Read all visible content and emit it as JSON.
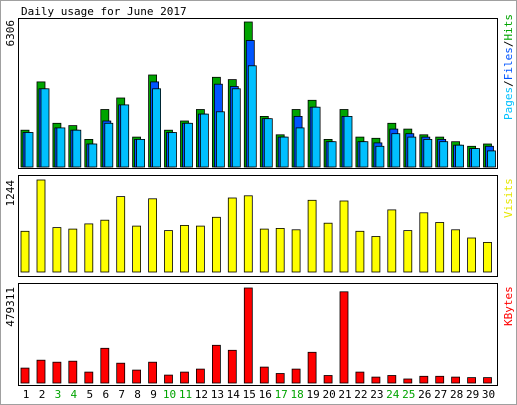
{
  "chart_data": {
    "type": "bar",
    "title": "Daily usage for June 2017",
    "categories": [
      "1",
      "2",
      "3",
      "4",
      "5",
      "6",
      "7",
      "8",
      "9",
      "10",
      "11",
      "12",
      "13",
      "14",
      "15",
      "16",
      "17",
      "18",
      "19",
      "20",
      "21",
      "22",
      "23",
      "24",
      "25",
      "26",
      "27",
      "28",
      "29",
      "30"
    ],
    "weekend_days": [
      "3",
      "4",
      "10",
      "11",
      "17",
      "18",
      "24",
      "25"
    ],
    "colors": {
      "hits": "#00a400",
      "files": "#0055ff",
      "pages": "#00c0ff",
      "visits": "#ffff00",
      "kbytes": "#ff0000",
      "weekend_label": "#00a400",
      "weekday_label": "#000000"
    },
    "panels": [
      {
        "name": "traffic",
        "ymax_label": "6306",
        "ymax": 6306,
        "legend": [
          "Pages",
          "Files",
          "Hits"
        ],
        "series": [
          {
            "name": "Hits",
            "values": [
              1600,
              3700,
              1900,
              1800,
              1200,
              2500,
              3000,
              1300,
              4000,
              1600,
              2000,
              2500,
              3900,
              3800,
              6306,
              2200,
              1400,
              2500,
              2900,
              1200,
              2500,
              1300,
              1250,
              1900,
              1650,
              1400,
              1300,
              1100,
              900,
              1000
            ]
          },
          {
            "name": "Files",
            "values": [
              1500,
              3400,
              1700,
              1600,
              1000,
              2000,
              2700,
              1200,
              3700,
              1500,
              1900,
              2300,
              3600,
              3500,
              5500,
              2100,
              1300,
              2200,
              2600,
              1100,
              2200,
              1100,
              1050,
              1650,
              1450,
              1300,
              1200,
              950,
              800,
              900
            ]
          },
          {
            "name": "Pages",
            "values": [
              1500,
              3400,
              1700,
              1600,
              1000,
              1900,
              2700,
              1200,
              3400,
              1500,
              1900,
              2300,
              2400,
              3400,
              4400,
              2100,
              1300,
              1700,
              2600,
              1100,
              2200,
              1100,
              900,
              1450,
              1300,
              1200,
              1100,
              950,
              800,
              700
            ]
          }
        ]
      },
      {
        "name": "visits",
        "ymax_label": "1244",
        "ymax": 1244,
        "legend": [
          "Visits"
        ],
        "series": [
          {
            "name": "Visits",
            "values": [
              550,
              1244,
              600,
              580,
              650,
              700,
              1020,
              620,
              990,
              560,
              630,
              620,
              740,
              1000,
              1030,
              580,
              590,
              570,
              970,
              660,
              960,
              550,
              480,
              840,
              560,
              800,
              670,
              570,
              460,
              400
            ]
          }
        ]
      },
      {
        "name": "kbytes",
        "ymax_label": "479311",
        "ymax": 479311,
        "legend": [
          "KBytes"
        ],
        "series": [
          {
            "name": "KBytes",
            "values": [
              75000,
              115000,
              105000,
              110000,
              55000,
              175000,
              100000,
              65000,
              105000,
              40000,
              55000,
              70000,
              190000,
              165000,
              479311,
              80000,
              48000,
              70000,
              155000,
              38000,
              460000,
              55000,
              30000,
              38000,
              20000,
              34000,
              34000,
              30000,
              27000,
              27000
            ]
          }
        ]
      }
    ]
  }
}
